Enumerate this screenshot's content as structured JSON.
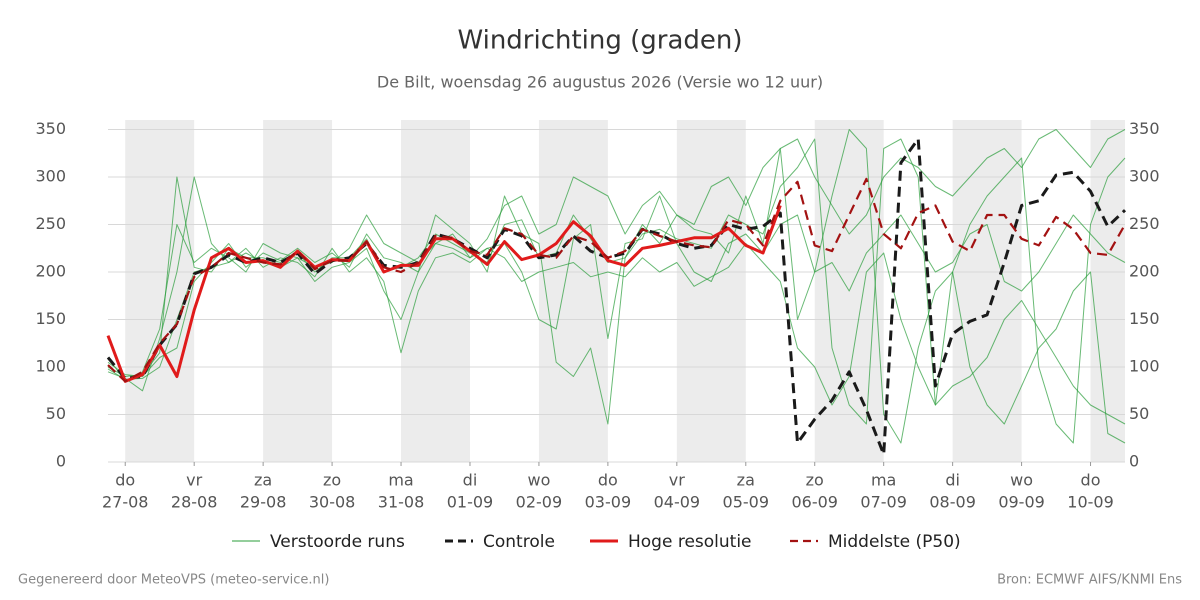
{
  "chart_data": {
    "type": "line",
    "title": "Windrichting (graden)",
    "subtitle": "De Bilt, woensdag 26 augustus 2026 (Versie wo 12 uur)",
    "footer_left": "Gegenereerd door MeteoVPS (meteo-service.nl)",
    "footer_right": "Bron: ECMWF AIFS/KNMI Ens",
    "ylim": [
      0,
      360
    ],
    "yticks": [
      0,
      50,
      100,
      150,
      200,
      250,
      300,
      350
    ],
    "xlim": [
      -0.25,
      14.5
    ],
    "xticks": [
      {
        "value": 0,
        "label": [
          "do",
          "27-08"
        ]
      },
      {
        "value": 1,
        "label": [
          "vr",
          "28-08"
        ]
      },
      {
        "value": 2,
        "label": [
          "za",
          "29-08"
        ]
      },
      {
        "value": 3,
        "label": [
          "zo",
          "30-08"
        ]
      },
      {
        "value": 4,
        "label": [
          "ma",
          "31-08"
        ]
      },
      {
        "value": 5,
        "label": [
          "di",
          "01-09"
        ]
      },
      {
        "value": 6,
        "label": [
          "wo",
          "02-09"
        ]
      },
      {
        "value": 7,
        "label": [
          "do",
          "03-09"
        ]
      },
      {
        "value": 8,
        "label": [
          "vr",
          "04-09"
        ]
      },
      {
        "value": 9,
        "label": [
          "za",
          "05-09"
        ]
      },
      {
        "value": 10,
        "label": [
          "zo",
          "06-09"
        ]
      },
      {
        "value": 11,
        "label": [
          "ma",
          "07-09"
        ]
      },
      {
        "value": 12,
        "label": [
          "di",
          "08-09"
        ]
      },
      {
        "value": 13,
        "label": [
          "wo",
          "09-09"
        ]
      },
      {
        "value": 14,
        "label": [
          "do",
          "10-09"
        ]
      }
    ],
    "grid": true,
    "x": [
      -0.25,
      0,
      0.25,
      0.5,
      0.75,
      1,
      1.25,
      1.5,
      1.75,
      2,
      2.25,
      2.5,
      2.75,
      3,
      3.25,
      3.5,
      3.75,
      4,
      4.25,
      4.5,
      4.75,
      5,
      5.25,
      5.5,
      5.75,
      6,
      6.25,
      6.5,
      6.75,
      7,
      7.25,
      7.5,
      7.75,
      8,
      8.25,
      8.5,
      8.75,
      9,
      9.25,
      9.5,
      9.75,
      10,
      10.25,
      10.5,
      10.75,
      11,
      11.25,
      11.5,
      11.75,
      12,
      12.25,
      12.5,
      12.75,
      13,
      13.25,
      13.5,
      13.75,
      14,
      14.25,
      14.5
    ],
    "series": [
      {
        "name": "Verstoorde runs",
        "color": "#2a9d3a",
        "width": 1,
        "dash": false,
        "runs": [
          [
            100,
            90,
            92,
            115,
            300,
            205,
            200,
            225,
            215,
            215,
            210,
            220,
            200,
            215,
            215,
            235,
            200,
            205,
            215,
            240,
            230,
            220,
            210,
            250,
            255,
            215,
            220,
            260,
            235,
            210,
            215,
            240,
            245,
            235,
            230,
            225,
            260,
            250,
            240,
            290,
            310,
            340,
            120,
            60,
            40,
            330,
            340,
            300,
            60,
            200,
            250,
            280,
            300,
            320,
            100,
            40,
            20,
            250,
            300,
            320
          ],
          [
            95,
            88,
            75,
            130,
            200,
            300,
            230,
            210,
            220,
            210,
            205,
            215,
            190,
            205,
            210,
            225,
            180,
            150,
            200,
            230,
            240,
            215,
            225,
            230,
            200,
            150,
            140,
            235,
            250,
            130,
            230,
            235,
            280,
            230,
            200,
            190,
            230,
            240,
            220,
            250,
            260,
            200,
            210,
            180,
            220,
            240,
            260,
            230,
            200,
            210,
            240,
            250,
            190,
            180,
            200,
            230,
            260,
            240,
            220,
            210
          ],
          [
            105,
            92,
            90,
            110,
            120,
            190,
            210,
            230,
            205,
            220,
            212,
            225,
            210,
            220,
            205,
            240,
            215,
            210,
            200,
            260,
            245,
            230,
            200,
            280,
            240,
            230,
            105,
            90,
            120,
            40,
            215,
            250,
            230,
            260,
            245,
            240,
            220,
            280,
            230,
            330,
            150,
            200,
            280,
            350,
            330,
            50,
            20,
            120,
            180,
            200,
            100,
            60,
            40,
            80,
            120,
            140,
            180,
            200,
            30,
            20
          ],
          [
            110,
            85,
            95,
            140,
            250,
            210,
            225,
            215,
            200,
            230,
            220,
            215,
            205,
            210,
            225,
            260,
            230,
            220,
            210,
            230,
            225,
            215,
            235,
            270,
            280,
            240,
            250,
            300,
            290,
            280,
            240,
            270,
            285,
            260,
            250,
            290,
            300,
            270,
            310,
            330,
            340,
            300,
            270,
            240,
            260,
            300,
            320,
            310,
            290,
            280,
            300,
            320,
            330,
            310,
            340,
            350,
            330,
            310,
            340,
            350
          ],
          [
            98,
            87,
            88,
            100,
            150,
            200,
            205,
            210,
            225,
            205,
            215,
            210,
            195,
            225,
            200,
            215,
            190,
            115,
            180,
            215,
            220,
            210,
            225,
            215,
            190,
            200,
            205,
            210,
            195,
            200,
            195,
            215,
            200,
            210,
            185,
            195,
            205,
            230,
            210,
            190,
            120,
            100,
            60,
            90,
            200,
            220,
            150,
            100,
            60,
            80,
            90,
            110,
            150,
            170,
            140,
            110,
            80,
            60,
            50,
            40
          ]
        ]
      },
      {
        "name": "Controle",
        "color": "#1a1a1a",
        "width": 3,
        "dash": true,
        "values": [
          110,
          88,
          90,
          123,
          145,
          198,
          205,
          218,
          210,
          215,
          210,
          220,
          198,
          212,
          215,
          230,
          207,
          205,
          210,
          240,
          235,
          225,
          215,
          245,
          238,
          215,
          218,
          238,
          222,
          215,
          220,
          245,
          240,
          230,
          225,
          228,
          250,
          245,
          248,
          262,
          20,
          45,
          65,
          95,
          55,
          8,
          315,
          340,
          80,
          135,
          148,
          155,
          210,
          270,
          275,
          302,
          305,
          285,
          248,
          265
        ]
      },
      {
        "name": "Hoge resolutie",
        "color": "#e01b1b",
        "width": 3,
        "dash": false,
        "values": [
          133,
          85,
          92,
          123,
          90,
          160,
          215,
          225,
          210,
          212,
          205,
          222,
          205,
          213,
          212,
          232,
          200,
          207,
          207,
          235,
          235,
          222,
          208,
          232,
          213,
          218,
          230,
          253,
          238,
          212,
          207,
          225,
          228,
          232,
          236,
          236,
          246,
          228,
          220,
          270,
          null,
          null,
          null,
          null,
          null,
          null,
          null,
          null,
          null,
          null,
          null,
          null,
          null,
          null,
          null,
          null,
          null,
          null,
          null,
          null
        ]
      },
      {
        "name": "Middelste (P50)",
        "color": "#a31212",
        "width": 2.2,
        "dash": true,
        "values": [
          102,
          85,
          95,
          125,
          145,
          195,
          205,
          220,
          215,
          210,
          208,
          222,
          203,
          212,
          212,
          232,
          205,
          200,
          210,
          238,
          236,
          222,
          218,
          246,
          240,
          218,
          215,
          238,
          232,
          215,
          222,
          245,
          238,
          232,
          228,
          226,
          255,
          250,
          228,
          275,
          295,
          228,
          222,
          260,
          298,
          240,
          225,
          262,
          270,
          232,
          222,
          260,
          260,
          235,
          228,
          258,
          245,
          220,
          218,
          250
        ]
      }
    ]
  }
}
